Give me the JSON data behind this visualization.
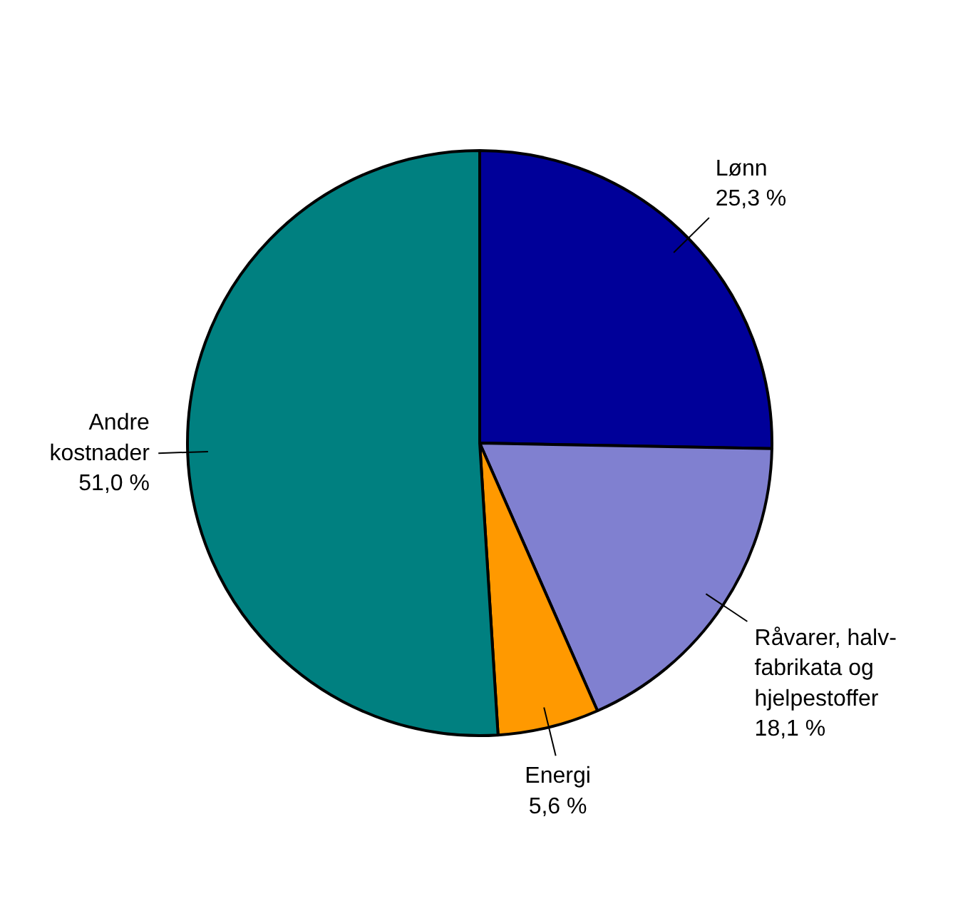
{
  "chart_data": {
    "type": "pie",
    "categories": [
      "Lønn",
      "Råvarer, halv-\nfabrikata og\nhjelpestoffer",
      "Energi",
      "Andre\nkostnader"
    ],
    "values": [
      25.3,
      18.1,
      5.6,
      51.0
    ],
    "value_labels": [
      "25,3 %",
      "18,1 %",
      "5,6 %",
      "51,0 %"
    ],
    "colors": [
      "#000099",
      "#8080d0",
      "#ff9900",
      "#008080"
    ],
    "legend": false
  }
}
